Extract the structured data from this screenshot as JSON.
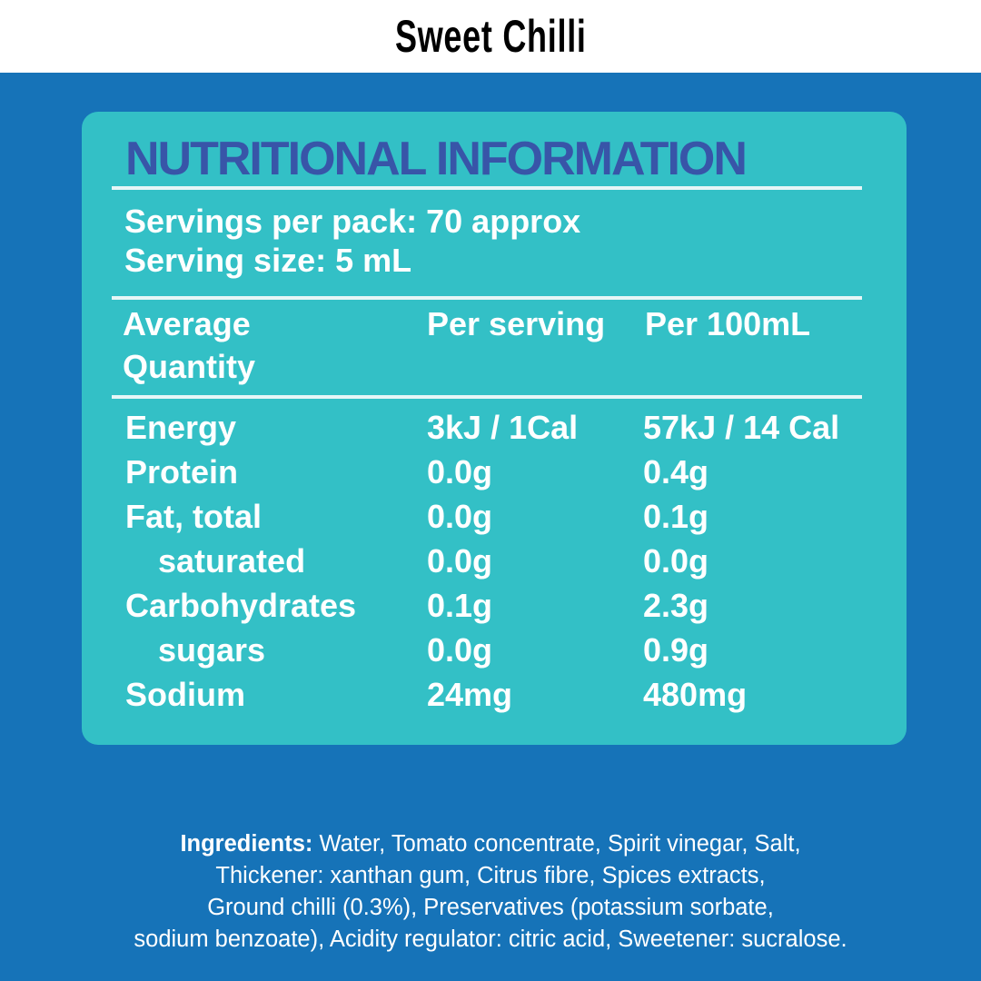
{
  "header": {
    "title": "Sweet Chilli"
  },
  "panel": {
    "title": "NUTRITIONAL INFORMATION",
    "servings_per_pack": "Servings per pack:  70 approx",
    "serving_size": "Serving size: 5 mL",
    "columns": {
      "avg_line1": "Average",
      "avg_line2": "Quantity",
      "per_serving": "Per serving",
      "per_100ml": "Per 100mL"
    },
    "rows": [
      {
        "name": "Energy",
        "per_serving": "3kJ / 1Cal",
        "per_100ml": "57kJ / 14 Cal"
      },
      {
        "name": "Protein",
        "per_serving": "0.0g",
        "per_100ml": "0.4g"
      },
      {
        "name": "Fat, total",
        "per_serving": "0.0g",
        "per_100ml": "0.1g"
      },
      {
        "name": "saturated",
        "per_serving": "0.0g",
        "per_100ml": "0.0g"
      },
      {
        "name": "Carbohydrates",
        "per_serving": "0.1g",
        "per_100ml": "2.3g"
      },
      {
        "name": "sugars",
        "per_serving": "0.0g",
        "per_100ml": "0.9g"
      },
      {
        "name": "Sodium",
        "per_serving": "24mg",
        "per_100ml": "480mg"
      }
    ]
  },
  "ingredients": {
    "label": "Ingredients:",
    "line1": " Water, Tomato concentrate, Spirit vinegar, Salt,",
    "line2": "Thickener: xanthan gum, Citrus fibre, Spices extracts,",
    "line3": "Ground chilli (0.3%), Preservatives (potassium sorbate,",
    "line4": "sodium benzoate),  Acidity regulator: citric acid, Sweetener: sucralose."
  }
}
